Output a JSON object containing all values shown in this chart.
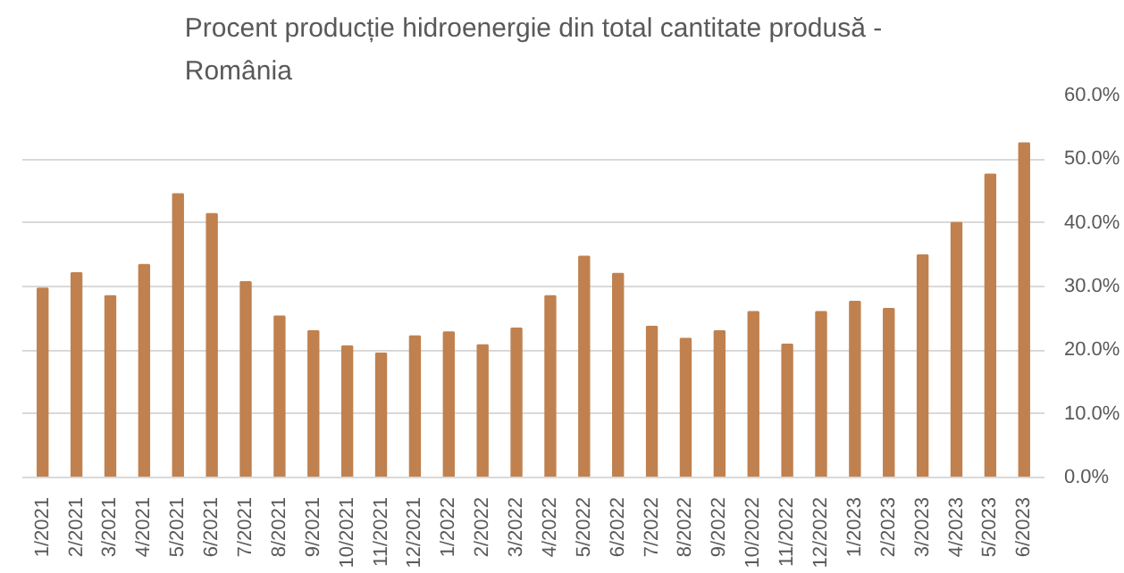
{
  "chart_data": {
    "type": "bar",
    "title": "Procent producție hidroenergie din total cantitate produsă -\nRomânia",
    "categories": [
      "1/2021",
      "2/2021",
      "3/2021",
      "4/2021",
      "5/2021",
      "6/2021",
      "7/2021",
      "8/2021",
      "9/2021",
      "10/2021",
      "11/2021",
      "12/2021",
      "1/2022",
      "2/2022",
      "3/2022",
      "4/2022",
      "5/2022",
      "6/2022",
      "7/2022",
      "8/2022",
      "9/2022",
      "10/2022",
      "11/2022",
      "12/2022",
      "1/2023",
      "2/2023",
      "3/2023",
      "4/2023",
      "5/2023",
      "6/2023"
    ],
    "values": [
      29.7,
      32.1,
      28.5,
      33.4,
      44.5,
      41.4,
      30.7,
      25.3,
      23.0,
      20.6,
      19.5,
      22.2,
      22.8,
      20.8,
      23.4,
      28.5,
      34.7,
      32.0,
      23.7,
      21.8,
      23.0,
      26.0,
      20.9,
      26.0,
      27.6,
      26.5,
      34.9,
      40.0,
      47.6,
      52.5
    ],
    "color": "#c0814f",
    "ylim": [
      0,
      60
    ],
    "yticks": [
      {
        "value": 0,
        "label": "0.0%"
      },
      {
        "value": 10,
        "label": "10.0%"
      },
      {
        "value": 20,
        "label": "20.0%"
      },
      {
        "value": 30,
        "label": "30.0%"
      },
      {
        "value": 40,
        "label": "40.0%"
      },
      {
        "value": 50,
        "label": "50.0%"
      },
      {
        "value": 60,
        "label": "60.0%"
      }
    ],
    "grid": "y"
  }
}
